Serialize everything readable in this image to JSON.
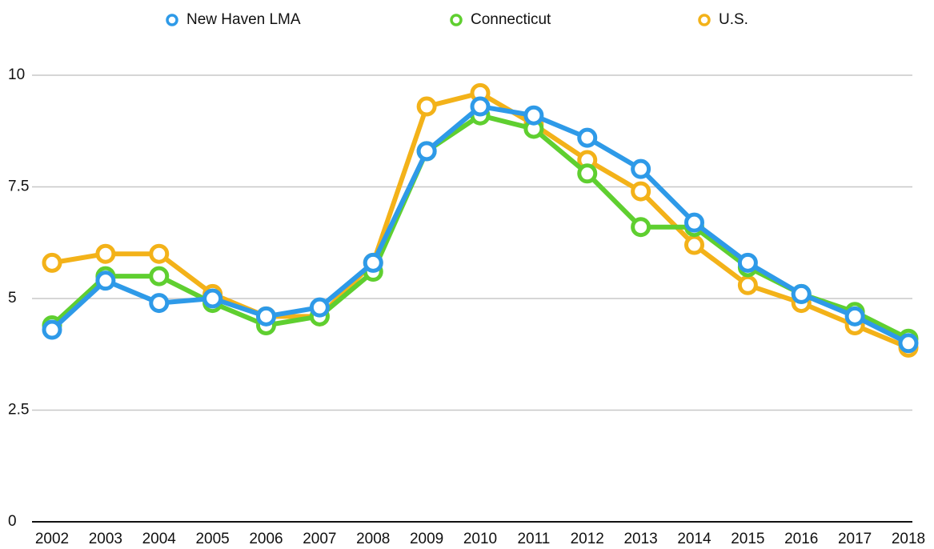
{
  "chart_data": {
    "type": "line",
    "categories": [
      "2002",
      "2003",
      "2004",
      "2005",
      "2006",
      "2007",
      "2008",
      "2009",
      "2010",
      "2011",
      "2012",
      "2013",
      "2014",
      "2015",
      "2016",
      "2017",
      "2018"
    ],
    "series": [
      {
        "name": "New Haven LMA",
        "color": "#2e9ae8",
        "values": [
          4.3,
          5.4,
          4.9,
          5.0,
          4.6,
          4.8,
          5.8,
          8.3,
          9.3,
          9.1,
          8.6,
          7.9,
          6.7,
          5.8,
          5.1,
          4.6,
          4.0
        ]
      },
      {
        "name": "Connecticut",
        "color": "#5fcf30",
        "values": [
          4.4,
          5.5,
          5.5,
          4.9,
          4.4,
          4.6,
          5.6,
          8.3,
          9.1,
          8.8,
          7.8,
          6.6,
          6.6,
          5.7,
          5.1,
          4.7,
          4.1
        ]
      },
      {
        "name": "U.S.",
        "color": "#f3b219",
        "values": [
          5.8,
          6.0,
          6.0,
          5.1,
          4.6,
          4.6,
          5.8,
          9.3,
          9.6,
          8.9,
          8.1,
          7.4,
          6.2,
          5.3,
          4.9,
          4.4,
          3.9
        ]
      }
    ],
    "ylim": [
      0,
      10
    ],
    "yticks": [
      0,
      2.5,
      5,
      7.5,
      10
    ],
    "grid": true,
    "legend": "top"
  }
}
